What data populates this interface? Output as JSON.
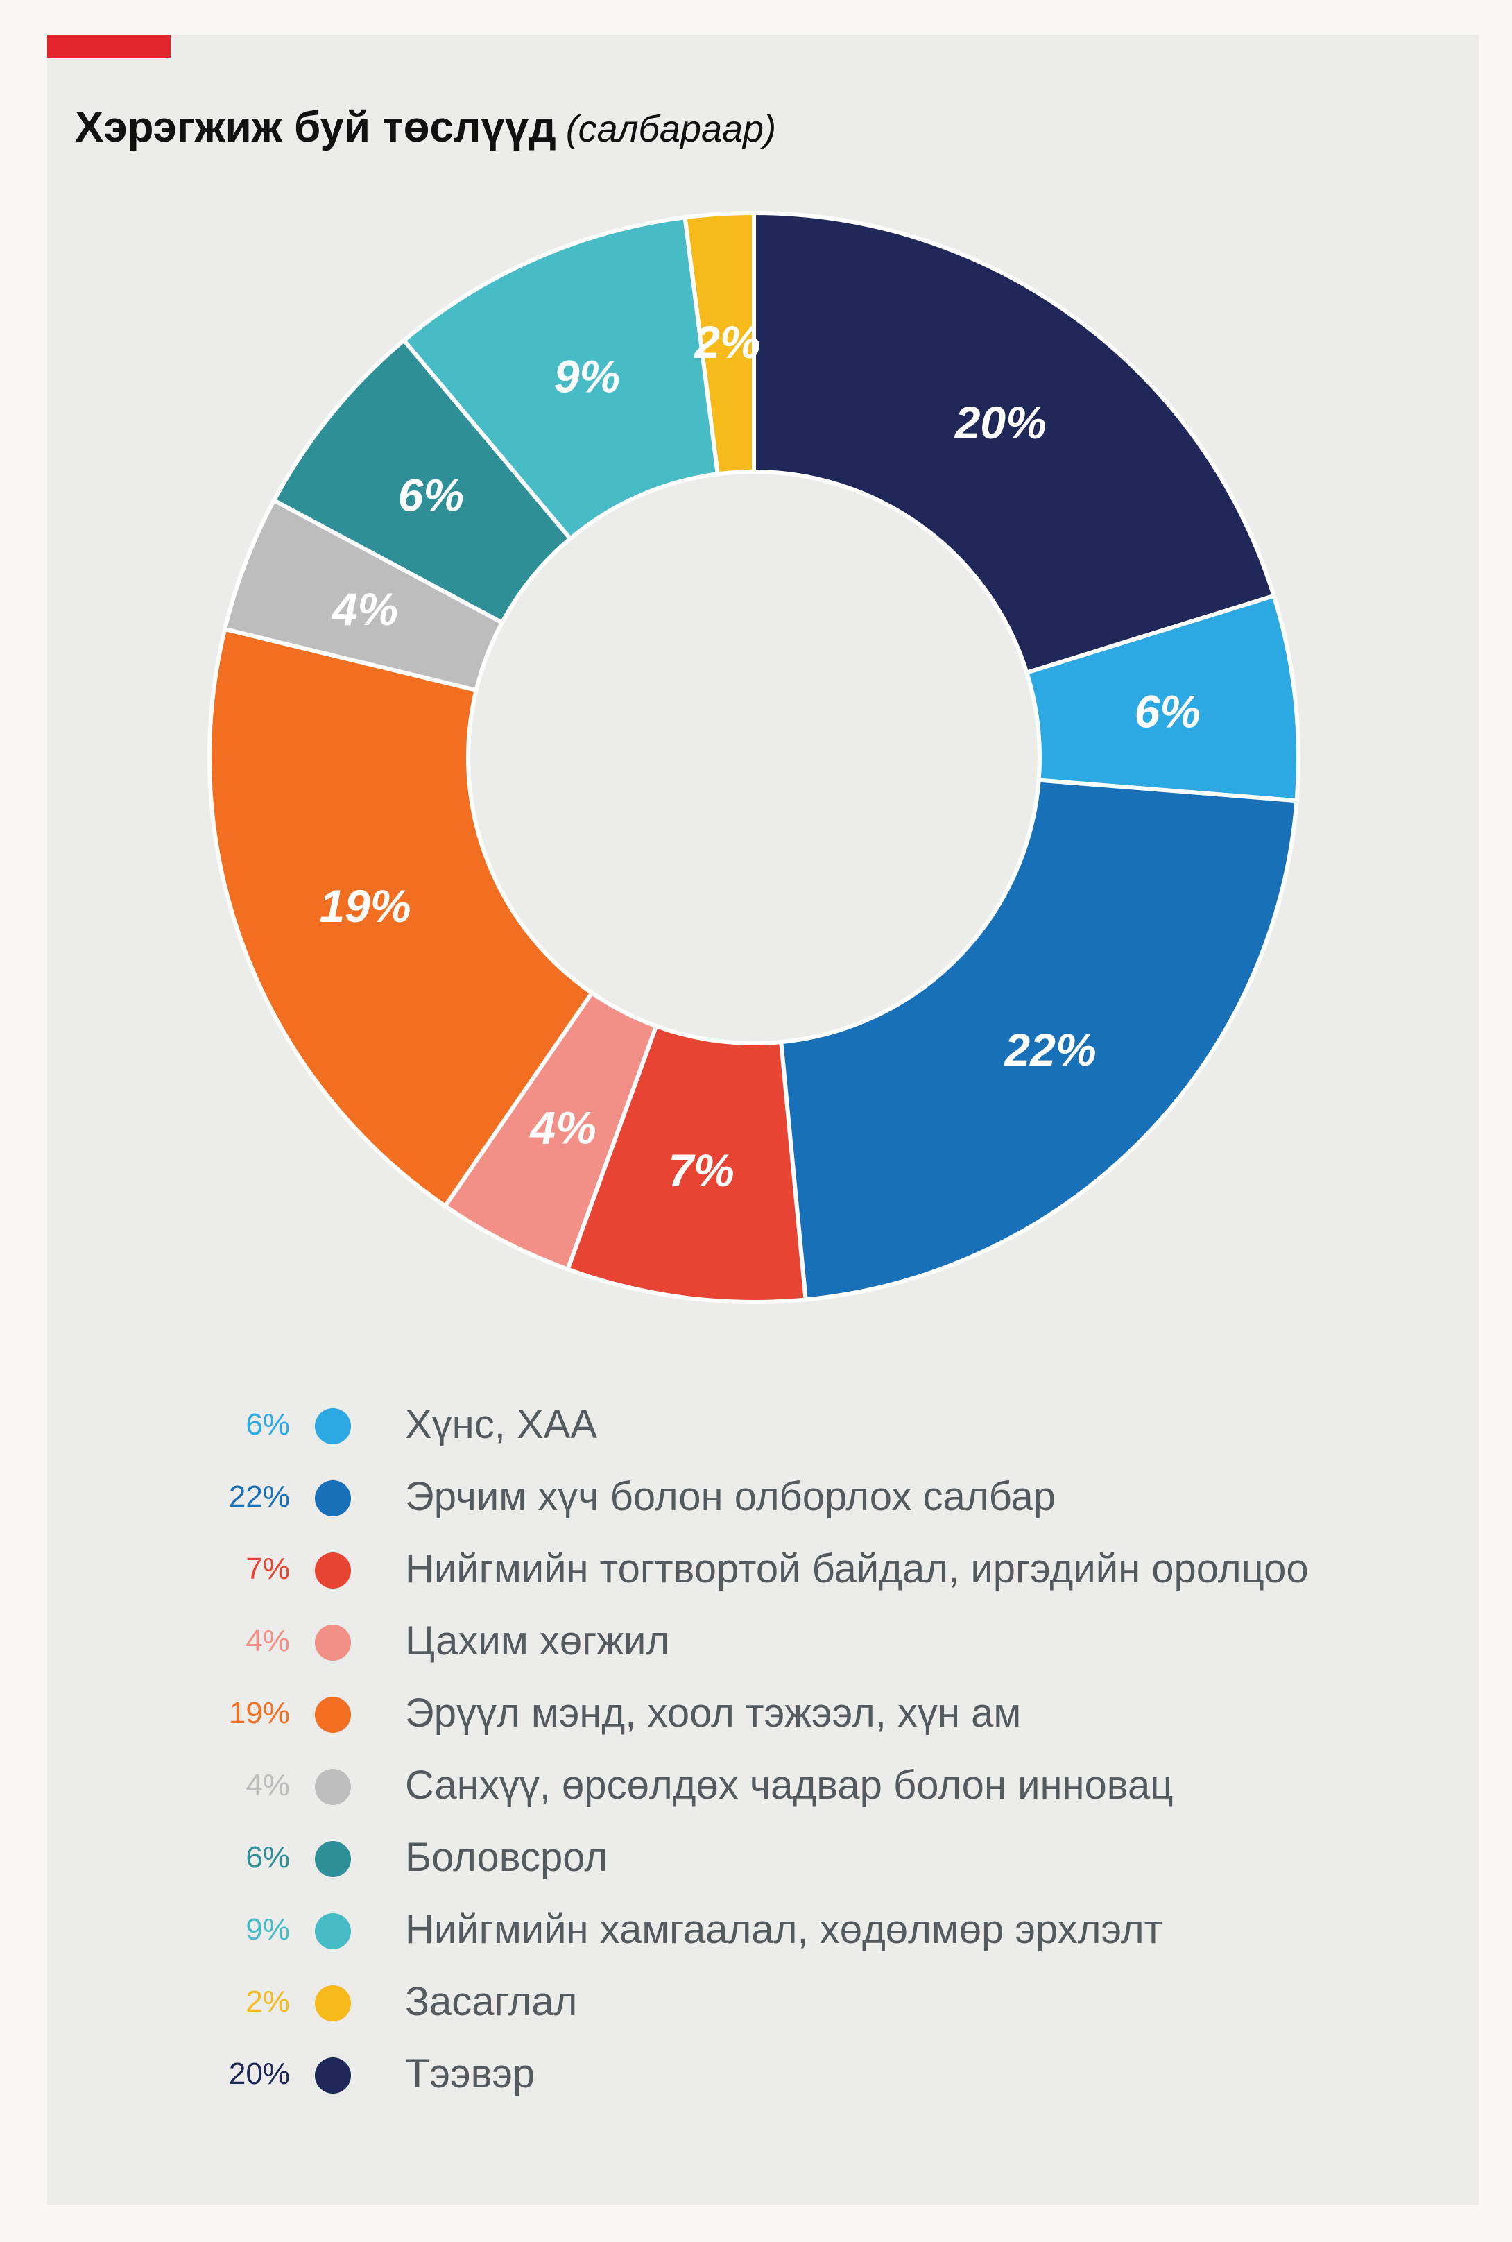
{
  "header": {
    "title": "Хэрэгжиж буй төслүүд",
    "subtitle": "(салбараар)"
  },
  "chart_data": {
    "type": "pie",
    "variant": "donut",
    "unit": "%",
    "categories": [
      "Хүнс, ХАА",
      "Эрчим хүч болон олборлох салбар",
      "Нийгмийн тогтвортой байдал, иргэдийн оролцоо",
      "Цахим хөгжил",
      "Эрүүл мэнд, хоол тэжээл, хүн ам",
      "Санхүү, өрсөлдөх чадвар болон инновац",
      "Боловсрол",
      "Нийгмийн хамгаалал, хөдөлмөр эрхлэлт",
      "Засаглал",
      "Тээвэр"
    ],
    "values": [
      6,
      22,
      7,
      4,
      19,
      4,
      6,
      9,
      2,
      20
    ],
    "labels": [
      "6%",
      "22%",
      "7%",
      "4%",
      "19%",
      "4%",
      "6%",
      "9%",
      "2%",
      "20%"
    ],
    "colors": [
      "#2ca8e2",
      "#1870b8",
      "#e84433",
      "#f28f87",
      "#f26f22",
      "#bdbdbd",
      "#2f8f96",
      "#48bcc6",
      "#f6bb1a",
      "#1f2859"
    ],
    "legend_pct_colors": [
      "#2ca8e2",
      "#1870b8",
      "#e84433",
      "#f28f87",
      "#f26f22",
      "#bdbdbd",
      "#2f8f96",
      "#48bcc6",
      "#f6bb1a",
      "#1f2859"
    ],
    "legend_position": "bottom",
    "start_category": "Тээвэр",
    "direction": "clockwise"
  }
}
